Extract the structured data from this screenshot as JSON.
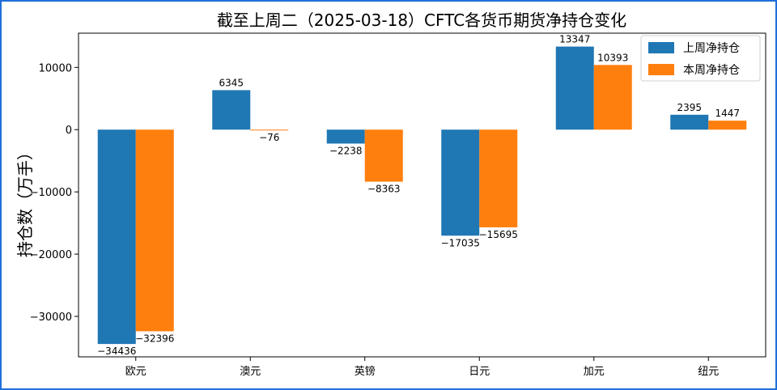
{
  "chart_data": {
    "type": "bar",
    "title": "截至上周二（2025-03-18）CFTC各货币期货净持仓变化",
    "ylabel": "持仓数（万手）",
    "xlabel": "",
    "categories": [
      "欧元",
      "澳元",
      "英镑",
      "日元",
      "加元",
      "纽元"
    ],
    "series": [
      {
        "name": "上周净持仓",
        "values": [
          -34436,
          6345,
          -2238,
          -17035,
          13347,
          2395
        ],
        "color": "#1f77b4"
      },
      {
        "name": "本周净持仓",
        "values": [
          -32396,
          -76,
          -8363,
          -15695,
          10393,
          1447
        ],
        "color": "#ff7f0e"
      }
    ],
    "ylim": [
      -36500,
      15500
    ],
    "yticks": [
      10000,
      0,
      -10000,
      -20000,
      -30000
    ],
    "ytick_labels": [
      "10000",
      "0",
      "−10000",
      "−20000",
      "−30000"
    ],
    "data_labels": [
      [
        "−34436",
        "6345",
        "−2238",
        "−17035",
        "13347",
        "2395"
      ],
      [
        "−32396",
        "−76",
        "−8363",
        "−15695",
        "10393",
        "1447"
      ]
    ],
    "legend": "top-right",
    "grid": false
  }
}
